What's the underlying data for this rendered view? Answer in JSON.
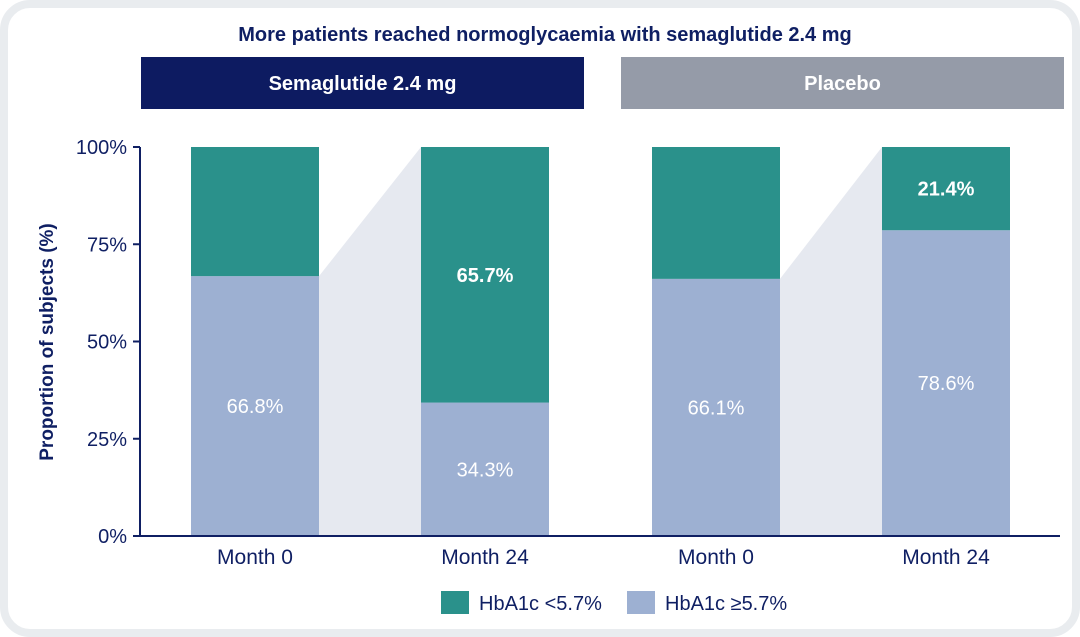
{
  "chart_data": {
    "type": "bar",
    "stacked": true,
    "title": "More patients reached normoglycaemia with semaglutide  2.4 mg",
    "ylabel": "Proportion of subjects (%)",
    "ylim": [
      0,
      100
    ],
    "yticks": [
      0,
      25,
      50,
      75,
      100
    ],
    "ytick_suffix": "%",
    "groups": [
      "Semaglutide 2.4 mg",
      "Placebo"
    ],
    "categories": [
      "Month 0",
      "Month 24",
      "Month 0",
      "Month 24"
    ],
    "category_groups": [
      0,
      0,
      1,
      1
    ],
    "series": [
      {
        "name": "HbA1c ≥5.7%",
        "color": "#9db0d2",
        "values": [
          66.8,
          34.3,
          66.1,
          78.6
        ],
        "labels": [
          "66.8%",
          "34.3%",
          "66.1%",
          "78.6%"
        ]
      },
      {
        "name": "HbA1c <5.7%",
        "color": "#2a918b",
        "values": [
          33.2,
          65.7,
          33.9,
          21.4
        ],
        "labels": [
          "",
          "65.7%",
          "",
          "21.4%"
        ]
      }
    ],
    "legend_position": "bottom",
    "grid": false
  },
  "colors": {
    "title": "#0f1f63",
    "group_semaglutide": "#0d1b61",
    "group_placebo": "#959ba8",
    "axis": "#0f1f63",
    "connector": "#e6e9f0",
    "frame": "#e9ecef",
    "label_light": "#ffffff"
  }
}
